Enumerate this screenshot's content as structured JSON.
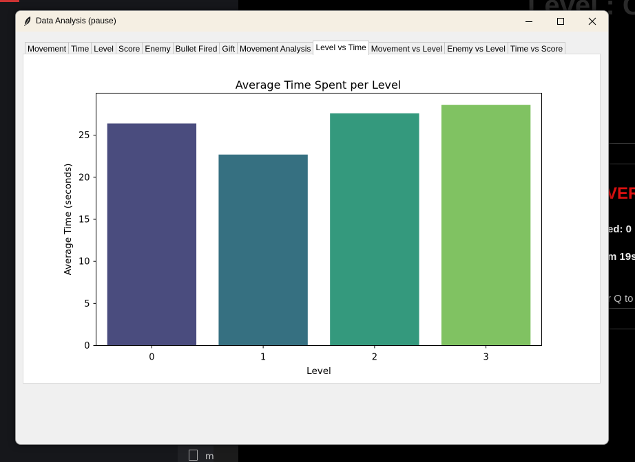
{
  "background": {
    "title_partial": "Level : C",
    "game_over_partial": "VER",
    "line1": "ed: 0",
    "line2": "m 19s",
    "line3": "r Q to",
    "file_partial": "m"
  },
  "window": {
    "title": "Data Analysis (pause)",
    "controls": {
      "minimize": "minimize-icon",
      "maximize": "maximize-icon",
      "close": "close-icon"
    }
  },
  "tabs": [
    {
      "label": "Movement",
      "active": false
    },
    {
      "label": "Time",
      "active": false
    },
    {
      "label": "Level",
      "active": false
    },
    {
      "label": "Score",
      "active": false
    },
    {
      "label": "Enemy",
      "active": false
    },
    {
      "label": "Bullet Fired",
      "active": false
    },
    {
      "label": "Gift",
      "active": false
    },
    {
      "label": "Movement Analysis",
      "active": false
    },
    {
      "label": "Level vs Time",
      "active": true
    },
    {
      "label": "Movement vs Level",
      "active": false
    },
    {
      "label": "Enemy vs Level",
      "active": false
    },
    {
      "label": "Time vs Score",
      "active": false
    }
  ],
  "chart_data": {
    "type": "bar",
    "title": "Average Time Spent per Level",
    "xlabel": "Level",
    "ylabel": "Average Time (seconds)",
    "categories": [
      "0",
      "1",
      "2",
      "3"
    ],
    "values": [
      26.4,
      22.7,
      27.6,
      28.6
    ],
    "colors": [
      "#4a4c7e",
      "#367081",
      "#34997d",
      "#80c262"
    ],
    "ylim": [
      0,
      30
    ],
    "yticks": [
      0,
      5,
      10,
      15,
      20,
      25
    ],
    "grid": false
  }
}
